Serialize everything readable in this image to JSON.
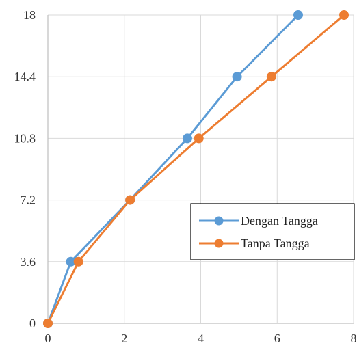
{
  "chart_data": {
    "type": "line",
    "title": "",
    "xlabel": "",
    "ylabel": "",
    "xlim": [
      0,
      8
    ],
    "ylim": [
      0,
      18
    ],
    "xticks": [
      "0",
      "2",
      "4",
      "6",
      "8"
    ],
    "yticks": [
      "0",
      "3.6",
      "7.2",
      "10.8",
      "14.4",
      "18"
    ],
    "grid": true,
    "legend_position": "right",
    "series": [
      {
        "name": "Dengan Tangga",
        "color": "#5b9bd5",
        "points": [
          {
            "x": 0,
            "y": 0
          },
          {
            "x": 0.6,
            "y": 3.6
          },
          {
            "x": 2.15,
            "y": 7.2
          },
          {
            "x": 3.65,
            "y": 10.8
          },
          {
            "x": 4.95,
            "y": 14.4
          },
          {
            "x": 6.55,
            "y": 18
          }
        ]
      },
      {
        "name": "Tanpa Tangga",
        "color": "#ed7d31",
        "points": [
          {
            "x": 0,
            "y": 0
          },
          {
            "x": 0.8,
            "y": 3.6
          },
          {
            "x": 2.15,
            "y": 7.2
          },
          {
            "x": 3.95,
            "y": 10.8
          },
          {
            "x": 5.85,
            "y": 14.4
          },
          {
            "x": 7.75,
            "y": 18
          }
        ]
      }
    ]
  }
}
